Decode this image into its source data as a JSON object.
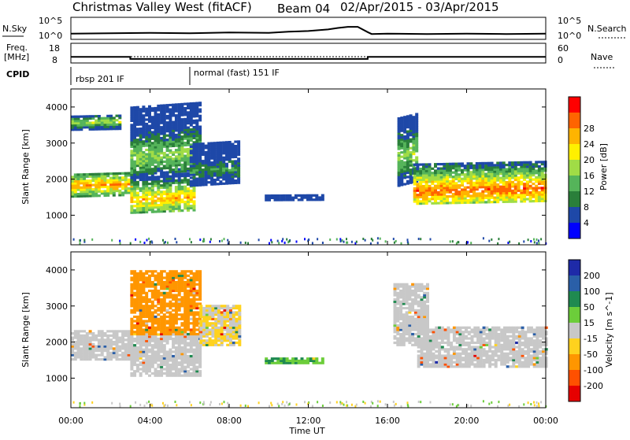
{
  "header": {
    "station": "Christmas Valley West (fitACF)",
    "beam": "Beam 04",
    "date_range": "02/Apr/2015 - 03/Apr/2015"
  },
  "noise_panel": {
    "left_label": "N.Sky",
    "right_label": "N.Search",
    "tick_top_left": "10^5",
    "tick_bottom_left": "10^0",
    "tick_top_right": "10^5",
    "tick_bottom_right": "10^0"
  },
  "freq_panel": {
    "left_label_1": "Freq.",
    "left_label_2": "[MHz]",
    "left_ticks": [
      "18",
      "8"
    ],
    "right_label": "Nave",
    "right_ticks": [
      "60",
      "0"
    ]
  },
  "cpid": {
    "label": "CPID",
    "modes": [
      {
        "start": 0.0,
        "name": "rbsp 201 IF"
      },
      {
        "start": 6.0,
        "name": "normal (fast) 151 IF"
      }
    ]
  },
  "power_panel": {
    "ylabel": "Slant Range [km]",
    "yticks": [
      "1000",
      "2000",
      "3000",
      "4000"
    ],
    "colorbar_label": "Power [dB]",
    "colorbar_ticks": [
      "4",
      "8",
      "12",
      "16",
      "20",
      "24",
      "28"
    ],
    "colors": [
      "#0000ff",
      "#1e48a8",
      "#2a7f3a",
      "#55b45a",
      "#a0dc46",
      "#fff000",
      "#ffb400",
      "#ff6400",
      "#ff0000"
    ]
  },
  "velocity_panel": {
    "ylabel": "Slant Range [km]",
    "yticks": [
      "1000",
      "2000",
      "3000",
      "4000"
    ],
    "colorbar_label": "Velocity [m s^-1]",
    "colorbar_ticks": [
      "200",
      "100",
      "50",
      "15",
      "-15",
      "-50",
      "-100",
      "-200"
    ],
    "colors": [
      "#1e2aa8",
      "#2a5fa8",
      "#1f8a50",
      "#6ccd3a",
      "#c8c8c8",
      "#ffd21e",
      "#ff9600",
      "#ff5000",
      "#e60000"
    ]
  },
  "xaxis": {
    "label": "Time UT",
    "ticks": [
      "00:00",
      "04:00",
      "08:00",
      "12:00",
      "16:00",
      "20:00",
      "00:00"
    ]
  },
  "chart_data": {
    "type": "heatmap",
    "title": "Christmas Valley West (fitACF) Beam 04 02/Apr/2015 - 03/Apr/2015",
    "xlabel": "Time UT",
    "ylabel": "Slant Range [km]",
    "xlim": [
      0,
      24
    ],
    "ylim": [
      180,
      4500
    ],
    "grid": false,
    "noise": {
      "hours": [
        0,
        2,
        4,
        6,
        8,
        10,
        11,
        12,
        13,
        13.5,
        14,
        14.5,
        15,
        15.2,
        16,
        18,
        20,
        22,
        24
      ],
      "log10_values": [
        1.1,
        1.2,
        1.3,
        1.2,
        1.4,
        1.3,
        1.6,
        1.8,
        2.2,
        2.6,
        2.9,
        2.9,
        1.5,
        1.0,
        1.1,
        1.0,
        1.1,
        1.0,
        1.1
      ]
    },
    "frequency": {
      "segments": [
        {
          "start": 0,
          "end": 3,
          "mhz": 12.5
        },
        {
          "start": 3,
          "end": 15,
          "mhz": 11.0
        },
        {
          "start": 15,
          "end": 24,
          "mhz": 12.5
        }
      ],
      "nave": 20
    },
    "power_bands": [
      {
        "t0": 0,
        "t1": 3,
        "r0": 1500,
        "r1": 2150,
        "core": 1800,
        "db": 26
      },
      {
        "t0": 0,
        "t1": 2.5,
        "r0": 3350,
        "r1": 3750,
        "core": 3550,
        "db": 18
      },
      {
        "t0": 3,
        "t1": 6.3,
        "r0": 1050,
        "r1": 2100,
        "core": 1400,
        "db": 24
      },
      {
        "t0": 3,
        "t1": 6.5,
        "r0": 2100,
        "r1": 4000,
        "core": 2600,
        "db": 16
      },
      {
        "t0": 6,
        "t1": 8.5,
        "r0": 1800,
        "r1": 3000,
        "core": 2200,
        "db": 10
      },
      {
        "t0": 9.8,
        "t1": 12.8,
        "r0": 1400,
        "r1": 1550,
        "core": 1480,
        "db": 6
      },
      {
        "t0": 16.5,
        "t1": 17.5,
        "r0": 1800,
        "r1": 3700,
        "core": 2600,
        "db": 16
      },
      {
        "t0": 17.3,
        "t1": 24,
        "r0": 1300,
        "r1": 2400,
        "core": 1650,
        "db": 28
      }
    ],
    "velocity_bands": [
      {
        "t0": 0,
        "t1": 3,
        "r0": 1500,
        "r1": 2300,
        "v": 0
      },
      {
        "t0": 3,
        "t1": 6.5,
        "r0": 1050,
        "r1": 2200,
        "v": 0
      },
      {
        "t0": 3,
        "t1": 6.5,
        "r0": 2200,
        "r1": 4000,
        "v": -50
      },
      {
        "t0": 6.5,
        "t1": 8.5,
        "r0": 1900,
        "r1": 3000,
        "v": -15
      },
      {
        "t0": 9.8,
        "t1": 12.8,
        "r0": 1400,
        "r1": 1550,
        "v": 30
      },
      {
        "t0": 16.3,
        "t1": 18,
        "r0": 1900,
        "r1": 3600,
        "v": 0
      },
      {
        "t0": 17.5,
        "t1": 24,
        "r0": 1300,
        "r1": 2400,
        "v": 0
      }
    ]
  }
}
